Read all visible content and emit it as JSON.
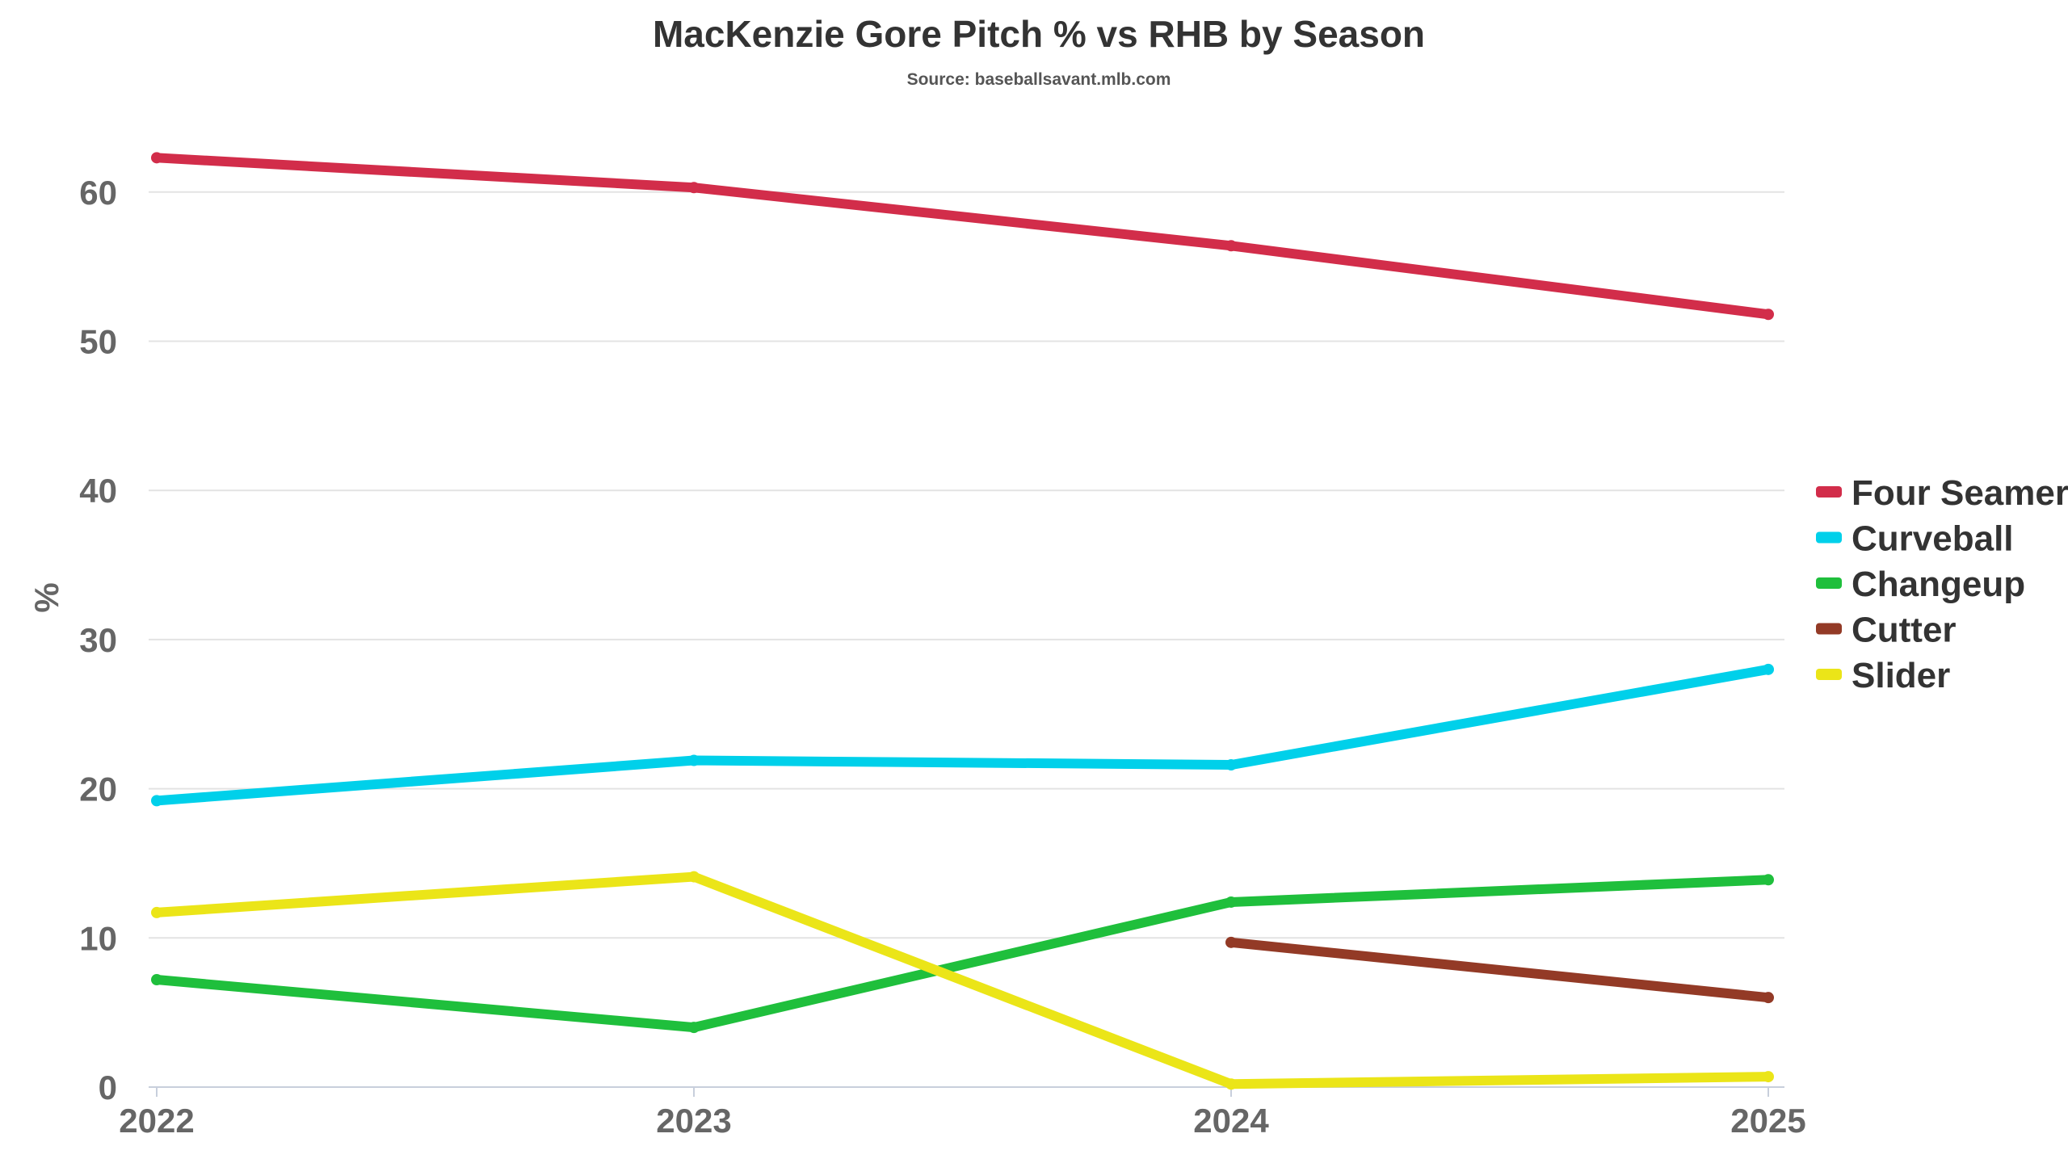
{
  "chart_data": {
    "type": "line",
    "title": "MacKenzie Gore Pitch % vs RHB by Season",
    "subtitle": "Source: baseballsavant.mlb.com",
    "xlabel": "",
    "ylabel": "%",
    "x": [
      "2022",
      "2023",
      "2024",
      "2025"
    ],
    "yticks": [
      "0",
      "10",
      "20",
      "30",
      "40",
      "50",
      "60"
    ],
    "ylim": [
      0,
      65
    ],
    "grid": true,
    "legend_position": "right",
    "series": [
      {
        "name": "Four Seamer",
        "color": "#d22d4a",
        "values": [
          62.3,
          60.3,
          56.4,
          51.8
        ]
      },
      {
        "name": "Curveball",
        "color": "#00d0ea",
        "values": [
          19.2,
          21.9,
          21.6,
          28.0
        ]
      },
      {
        "name": "Changeup",
        "color": "#1fbf3c",
        "values": [
          7.2,
          4.0,
          12.4,
          13.9
        ]
      },
      {
        "name": "Cutter",
        "color": "#933a26",
        "values": [
          null,
          null,
          9.7,
          6.0
        ]
      },
      {
        "name": "Slider",
        "color": "#ebe518",
        "values": [
          11.7,
          14.1,
          0.2,
          0.7
        ]
      }
    ]
  }
}
